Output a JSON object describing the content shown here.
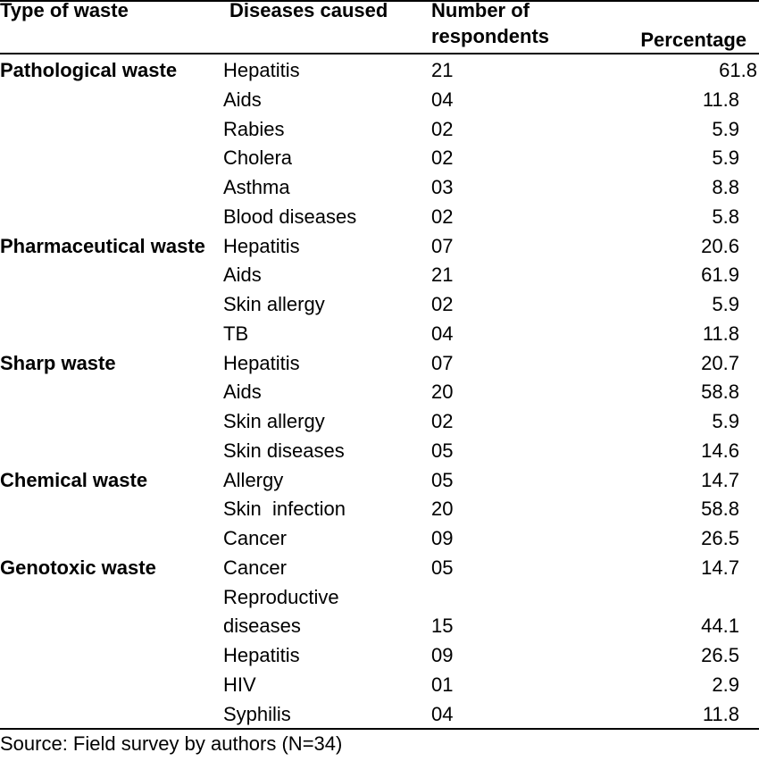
{
  "header": {
    "type": "Type of waste",
    "diseases": "Diseases caused",
    "number_line1": "Number of",
    "number_line2": "respondents",
    "percentage": "Percentage"
  },
  "rows": [
    {
      "type": "Pathological waste",
      "disease": "Hepatitis",
      "number": "21",
      "percentage": "61.8"
    },
    {
      "type": "",
      "disease": "Aids",
      "number": "04",
      "percentage": "11.8"
    },
    {
      "type": "",
      "disease": "Rabies",
      "number": "02",
      "percentage": "5.9"
    },
    {
      "type": "",
      "disease": "Cholera",
      "number": "02",
      "percentage": "5.9"
    },
    {
      "type": "",
      "disease": "Asthma",
      "number": "03",
      "percentage": "8.8"
    },
    {
      "type": "",
      "disease": "Blood diseases",
      "number": "02",
      "percentage": "5.8"
    },
    {
      "type": "Pharmaceutical waste",
      "disease": "Hepatitis",
      "number": "07",
      "percentage": "20.6"
    },
    {
      "type": "",
      "disease": "Aids",
      "number": "21",
      "percentage": "61.9"
    },
    {
      "type": "",
      "disease": "Skin allergy",
      "number": "02",
      "percentage": "5.9"
    },
    {
      "type": "",
      "disease": "TB",
      "number": "04",
      "percentage": "11.8"
    },
    {
      "type": "Sharp waste",
      "disease": "Hepatitis",
      "number": "07",
      "percentage": "20.7"
    },
    {
      "type": "",
      "disease": "Aids",
      "number": "20",
      "percentage": "58.8"
    },
    {
      "type": "",
      "disease": "Skin allergy",
      "number": "02",
      "percentage": "5.9"
    },
    {
      "type": "",
      "disease": "Skin diseases",
      "number": "05",
      "percentage": "14.6"
    },
    {
      "type": "Chemical waste",
      "disease": "Allergy",
      "number": "05",
      "percentage": "14.7"
    },
    {
      "type": "",
      "disease": "Skin  infection",
      "number": "20",
      "percentage": "58.8"
    },
    {
      "type": "",
      "disease": "Cancer",
      "number": "09",
      "percentage": "26.5"
    },
    {
      "type": "Genotoxic waste",
      "disease": "Cancer",
      "number": "05",
      "percentage": "14.7"
    },
    {
      "type": "",
      "disease": "Reproductive diseases",
      "number": "15",
      "percentage": "44.1"
    },
    {
      "type": "",
      "disease": "Hepatitis",
      "number": "09",
      "percentage": "26.5"
    },
    {
      "type": "",
      "disease": "HIV",
      "number": "01",
      "percentage": "2.9"
    },
    {
      "type": "",
      "disease": "Syphilis",
      "number": "04",
      "percentage": "11.8"
    }
  ],
  "source": "Source: Field survey by authors (N=34)"
}
